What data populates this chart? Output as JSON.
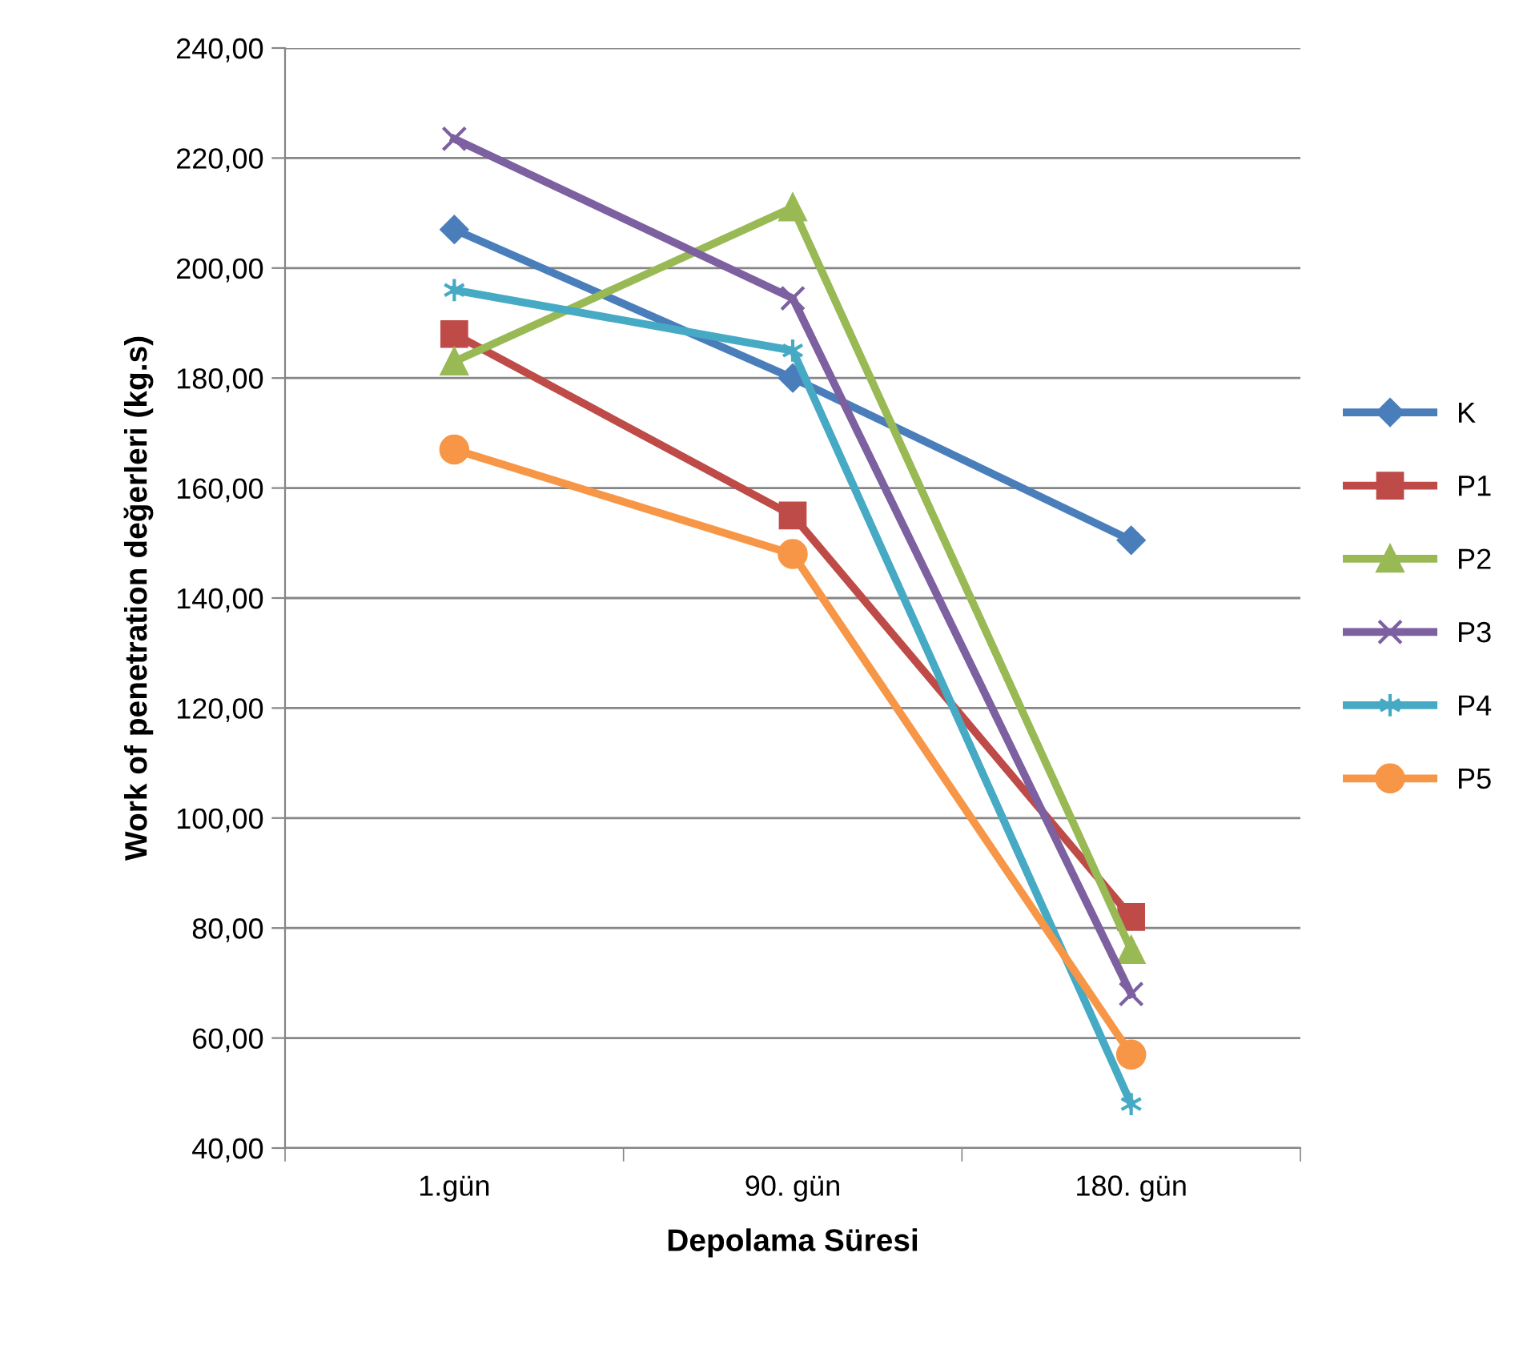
{
  "chart_data": {
    "type": "line",
    "xlabel": "Depolama Süresi",
    "ylabel": "Work of penetration değerleri (kg.s)",
    "categories": [
      "1.gün",
      "90. gün",
      "180. gün"
    ],
    "series": [
      {
        "name": "K",
        "color": "#4a7ebb",
        "marker": "diamond",
        "values": [
          207,
          180,
          150.5
        ]
      },
      {
        "name": "P1",
        "color": "#be4b48",
        "marker": "square",
        "values": [
          188,
          155,
          82
        ]
      },
      {
        "name": "P2",
        "color": "#98b954",
        "marker": "triangle",
        "values": [
          183,
          211,
          76
        ]
      },
      {
        "name": "P3",
        "color": "#7d60a0",
        "marker": "cross",
        "values": [
          223.5,
          194.5,
          68
        ]
      },
      {
        "name": "P4",
        "color": "#46aac5",
        "marker": "cross",
        "values": [
          196,
          185,
          48
        ]
      },
      {
        "name": "P5",
        "color": "#f79646",
        "marker": "circle",
        "values": [
          167,
          148,
          57
        ]
      }
    ],
    "ylim": [
      40,
      240
    ],
    "yticks": [
      {
        "value": 40,
        "label": "40,00"
      },
      {
        "value": 60,
        "label": "60,00"
      },
      {
        "value": 80,
        "label": "80,00"
      },
      {
        "value": 100,
        "label": "100,00"
      },
      {
        "value": 120,
        "label": "120,00"
      },
      {
        "value": 140,
        "label": "140,00"
      },
      {
        "value": 160,
        "label": "160,00"
      },
      {
        "value": 180,
        "label": "180,00"
      },
      {
        "value": 200,
        "label": "200,00"
      },
      {
        "value": 220,
        "label": "220,00"
      },
      {
        "value": 240,
        "label": "240,00"
      }
    ],
    "grid": "y",
    "legend": "right",
    "line_style": "solid"
  }
}
